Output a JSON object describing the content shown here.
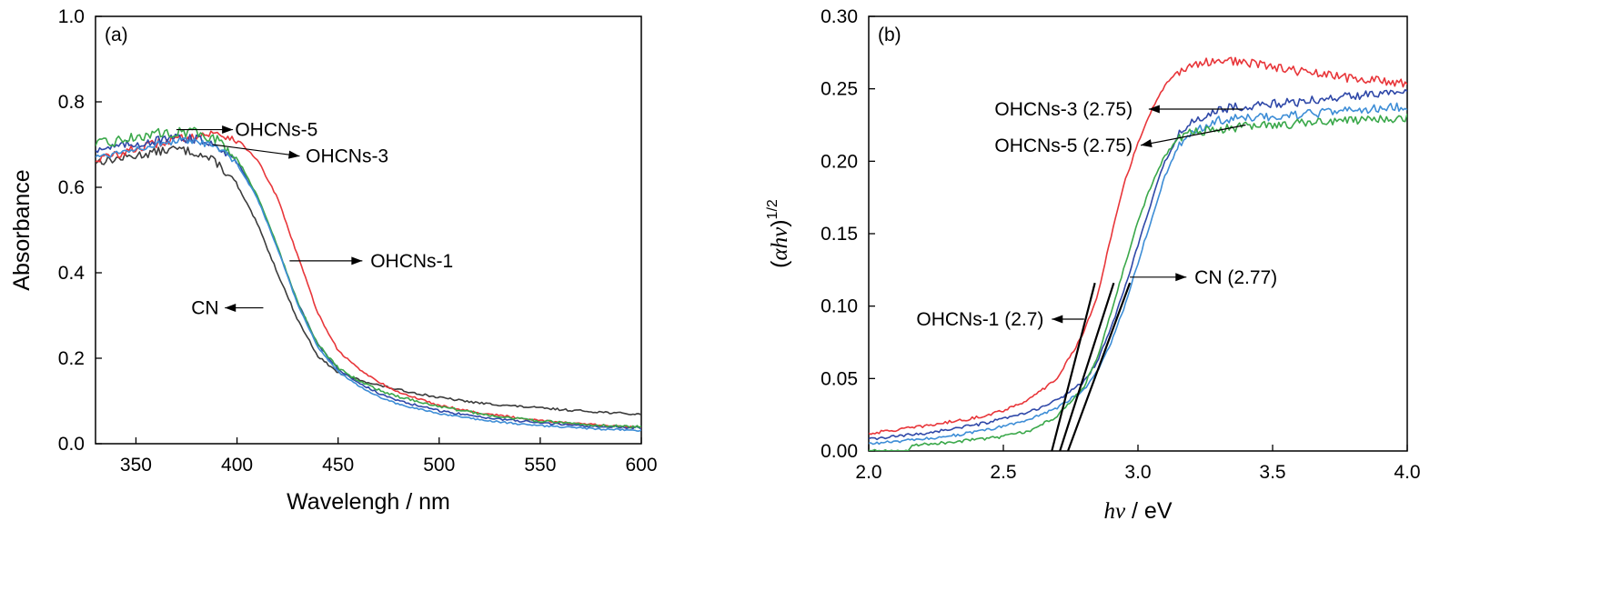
{
  "colors": {
    "CN": "#3c3c3c",
    "OHCNs-1": "#e8363a",
    "OHCNs-3": "#2f48a8",
    "OHCNs-5": "#3aa84a",
    "extra": "#3d8dd6",
    "tangent": "#000000"
  },
  "chart_data": [
    {
      "type": "line",
      "panel_label": "(a)",
      "xlabel": "Wavelengh / nm",
      "ylabel": "Absorbance",
      "xlim": [
        330,
        600
      ],
      "ylim": [
        0.0,
        1.0
      ],
      "xticks": [
        "350",
        "400",
        "450",
        "500",
        "550",
        "600"
      ],
      "yticks": [
        "0.0",
        "0.2",
        "0.4",
        "0.6",
        "0.8",
        "1.0"
      ],
      "series": [
        {
          "name": "CN",
          "color_key": "CN",
          "x": [
            330,
            340,
            350,
            360,
            370,
            380,
            390,
            400,
            410,
            420,
            430,
            440,
            450,
            460,
            470,
            480,
            500,
            520,
            540,
            560,
            580,
            600
          ],
          "y": [
            0.66,
            0.666,
            0.674,
            0.683,
            0.69,
            0.681,
            0.658,
            0.605,
            0.515,
            0.4,
            0.29,
            0.205,
            0.166,
            0.15,
            0.137,
            0.126,
            0.108,
            0.095,
            0.087,
            0.08,
            0.074,
            0.068
          ],
          "noise": 0.01
        },
        {
          "name": "OHCNs-1",
          "color_key": "OHCNs-1",
          "x": [
            330,
            340,
            350,
            360,
            370,
            380,
            390,
            400,
            410,
            420,
            430,
            440,
            450,
            460,
            470,
            480,
            500,
            520,
            540,
            560,
            580,
            600
          ],
          "y": [
            0.665,
            0.676,
            0.69,
            0.702,
            0.712,
            0.721,
            0.726,
            0.712,
            0.665,
            0.575,
            0.44,
            0.305,
            0.218,
            0.176,
            0.144,
            0.12,
            0.09,
            0.072,
            0.06,
            0.05,
            0.043,
            0.038
          ],
          "noise": 0.01
        },
        {
          "name": "OHCNs-3",
          "color_key": "OHCNs-3",
          "x": [
            330,
            340,
            350,
            360,
            370,
            380,
            390,
            400,
            410,
            420,
            430,
            440,
            450,
            460,
            470,
            480,
            500,
            520,
            540,
            560,
            580,
            600
          ],
          "y": [
            0.69,
            0.695,
            0.702,
            0.709,
            0.715,
            0.713,
            0.7,
            0.66,
            0.578,
            0.46,
            0.33,
            0.232,
            0.175,
            0.143,
            0.118,
            0.1,
            0.077,
            0.063,
            0.053,
            0.045,
            0.04,
            0.037
          ],
          "noise": 0.01
        },
        {
          "name": "OHCNs-5",
          "color_key": "OHCNs-5",
          "x": [
            330,
            340,
            350,
            360,
            370,
            380,
            390,
            400,
            410,
            420,
            430,
            440,
            450,
            460,
            470,
            480,
            500,
            520,
            540,
            560,
            580,
            600
          ],
          "y": [
            0.7,
            0.708,
            0.718,
            0.725,
            0.73,
            0.728,
            0.712,
            0.668,
            0.582,
            0.462,
            0.33,
            0.233,
            0.177,
            0.148,
            0.126,
            0.11,
            0.087,
            0.07,
            0.058,
            0.049,
            0.043,
            0.039
          ],
          "noise": 0.012
        },
        {
          "color_key": "extra",
          "x": [
            330,
            340,
            350,
            360,
            370,
            380,
            390,
            400,
            410,
            420,
            430,
            440,
            450,
            460,
            470,
            480,
            500,
            520,
            540,
            560,
            580,
            600
          ],
          "y": [
            0.672,
            0.68,
            0.692,
            0.7,
            0.708,
            0.706,
            0.694,
            0.655,
            0.575,
            0.458,
            0.326,
            0.226,
            0.168,
            0.136,
            0.11,
            0.092,
            0.07,
            0.056,
            0.046,
            0.039,
            0.034,
            0.031
          ],
          "noise": 0.008
        }
      ],
      "annotations": [
        {
          "text": "OHCNs-5",
          "arrow_from": [
            370,
            0.735
          ],
          "arrow_to": [
            398,
            0.735
          ],
          "text_at": [
            399,
            0.735
          ]
        },
        {
          "text": "OHCNs-3",
          "arrow_from": [
            388,
            0.7
          ],
          "arrow_to": [
            431,
            0.673
          ],
          "text_at": [
            434,
            0.673
          ]
        },
        {
          "text": "OHCNs-1",
          "arrow_from": [
            426,
            0.428
          ],
          "arrow_to": [
            462,
            0.428
          ],
          "text_at": [
            466,
            0.428
          ]
        },
        {
          "text": "CN",
          "arrow_from": [
            413,
            0.318
          ],
          "arrow_to": [
            394,
            0.318
          ],
          "text_at": [
            391,
            0.318
          ],
          "align": "end"
        }
      ]
    },
    {
      "type": "line",
      "panel_label": "(b)",
      "xlabel": "hν / eV",
      "ylabel": "(αhν)1/2",
      "xlim": [
        2.0,
        4.0
      ],
      "ylim": [
        0.0,
        0.3
      ],
      "xticks": [
        "2.0",
        "2.5",
        "3.0",
        "3.5",
        "4.0"
      ],
      "yticks": [
        "0.00",
        "0.05",
        "0.10",
        "0.15",
        "0.20",
        "0.25",
        "0.30"
      ],
      "series": [
        {
          "name": "OHCNs-1",
          "color_key": "OHCNs-1",
          "x": [
            2.0,
            2.2,
            2.4,
            2.5,
            2.6,
            2.7,
            2.8,
            2.85,
            2.9,
            2.95,
            3.0,
            3.05,
            3.1,
            3.15,
            3.2,
            3.3,
            3.4,
            3.6,
            3.8,
            4.0
          ],
          "y": [
            0.012,
            0.017,
            0.023,
            0.028,
            0.036,
            0.05,
            0.082,
            0.108,
            0.148,
            0.185,
            0.213,
            0.235,
            0.252,
            0.262,
            0.266,
            0.27,
            0.268,
            0.262,
            0.257,
            0.254
          ],
          "noise": 0.003
        },
        {
          "name": "OHCNs-3",
          "color_key": "OHCNs-3",
          "x": [
            2.0,
            2.2,
            2.4,
            2.5,
            2.6,
            2.7,
            2.8,
            2.85,
            2.9,
            2.95,
            3.0,
            3.05,
            3.1,
            3.15,
            3.2,
            3.3,
            3.4,
            3.6,
            3.8,
            4.0
          ],
          "y": [
            0.008,
            0.012,
            0.018,
            0.022,
            0.027,
            0.035,
            0.048,
            0.062,
            0.085,
            0.112,
            0.142,
            0.172,
            0.2,
            0.218,
            0.226,
            0.236,
            0.238,
            0.241,
            0.245,
            0.25
          ],
          "noise": 0.003
        },
        {
          "name": "CN",
          "color_key": "extra",
          "x": [
            2.0,
            2.2,
            2.4,
            2.5,
            2.6,
            2.7,
            2.8,
            2.85,
            2.9,
            2.95,
            3.0,
            3.05,
            3.1,
            3.15,
            3.2,
            3.3,
            3.4,
            3.6,
            3.8,
            4.0
          ],
          "y": [
            0.005,
            0.008,
            0.013,
            0.017,
            0.022,
            0.03,
            0.042,
            0.055,
            0.075,
            0.1,
            0.13,
            0.16,
            0.19,
            0.21,
            0.22,
            0.228,
            0.23,
            0.232,
            0.235,
            0.238
          ],
          "noise": 0.003
        },
        {
          "name": "OHCNs-5",
          "color_key": "OHCNs-5",
          "x": [
            2.0,
            2.15,
            2.16,
            2.3,
            2.5,
            2.6,
            2.7,
            2.8,
            2.85,
            2.9,
            2.95,
            3.0,
            3.05,
            3.1,
            3.15,
            3.2,
            3.3,
            3.4,
            3.6,
            3.8,
            4.0
          ],
          "y": [
            0.0,
            0.0,
            0.004,
            0.006,
            0.01,
            0.014,
            0.024,
            0.045,
            0.065,
            0.095,
            0.128,
            0.158,
            0.184,
            0.204,
            0.216,
            0.22,
            0.222,
            0.224,
            0.226,
            0.228,
            0.23
          ],
          "noise": 0.003
        }
      ],
      "tangents": [
        {
          "x": [
            2.68,
            2.84
          ],
          "y": [
            0.0,
            0.116
          ]
        },
        {
          "x": [
            2.71,
            2.91
          ],
          "y": [
            0.0,
            0.116
          ]
        },
        {
          "x": [
            2.74,
            2.97
          ],
          "y": [
            0.0,
            0.116
          ]
        }
      ],
      "annotations": [
        {
          "text": "OHCNs-3 (2.75)",
          "arrow_from": [
            3.39,
            0.236
          ],
          "arrow_to": [
            3.04,
            0.236
          ],
          "text_at": [
            2.98,
            0.236
          ],
          "align": "end"
        },
        {
          "text": "OHCNs-5 (2.75)",
          "arrow_from": [
            3.4,
            0.225
          ],
          "arrow_to": [
            3.01,
            0.211
          ],
          "text_at": [
            2.98,
            0.211
          ],
          "align": "end"
        },
        {
          "text": "CN (2.77)",
          "arrow_from": [
            2.97,
            0.12
          ],
          "arrow_to": [
            3.18,
            0.12
          ],
          "text_at": [
            3.21,
            0.12
          ]
        },
        {
          "text": "OHCNs-1 (2.7)",
          "arrow_from": [
            2.8,
            0.091
          ],
          "arrow_to": [
            2.68,
            0.091
          ],
          "text_at": [
            2.65,
            0.091
          ],
          "align": "end"
        }
      ]
    }
  ]
}
